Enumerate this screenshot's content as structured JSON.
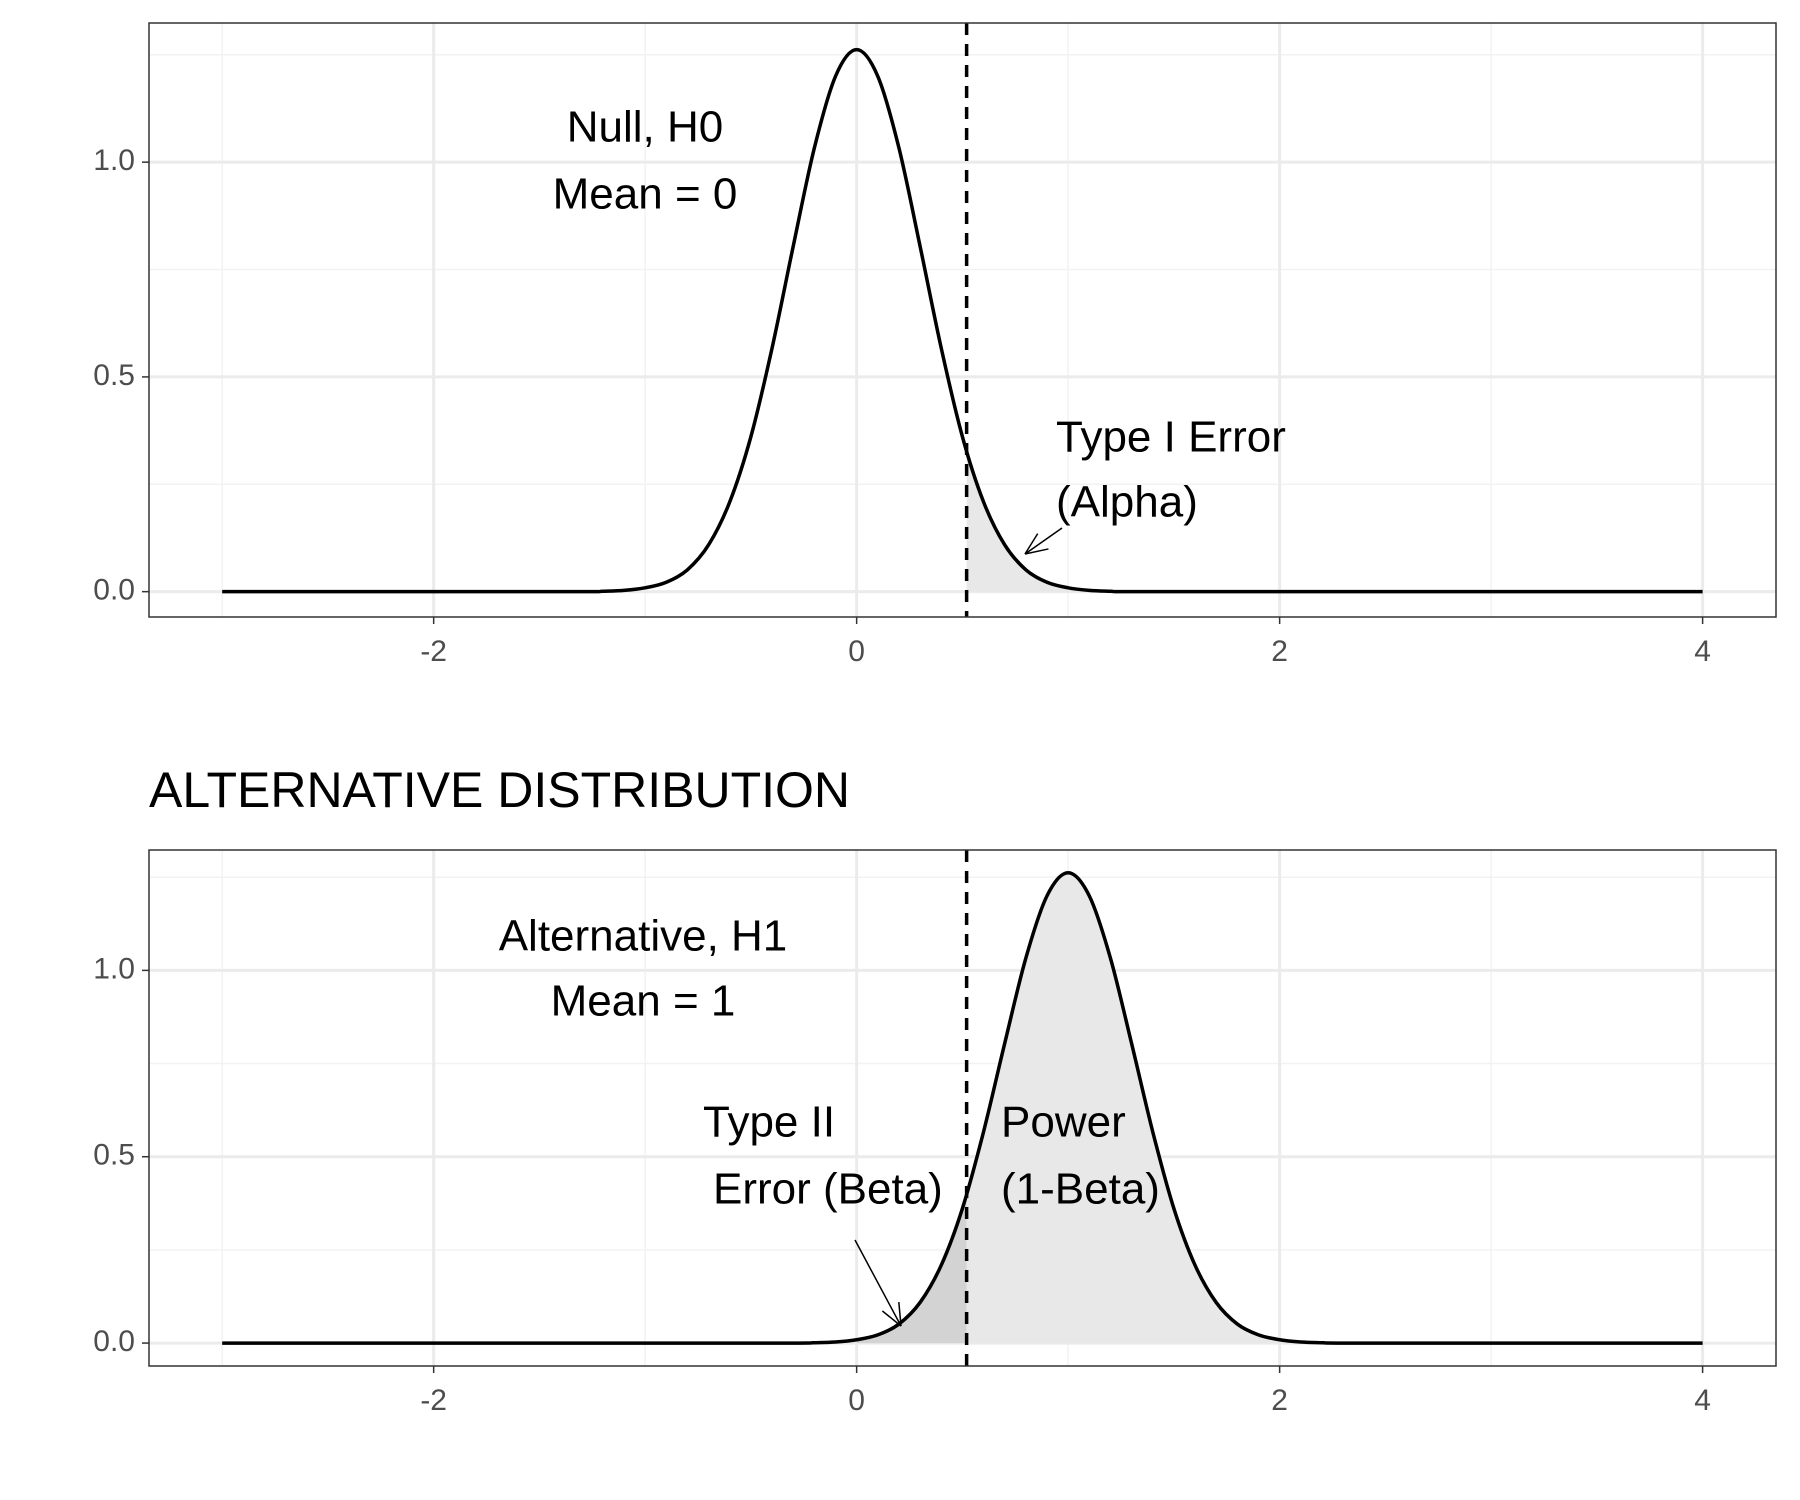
{
  "chart_data": [
    {
      "type": "line",
      "x": [
        -3,
        -2,
        -1.3,
        -1.2,
        -1.1,
        -1.0,
        -0.9,
        -0.8,
        -0.7,
        -0.6,
        -0.5,
        -0.4,
        -0.3,
        -0.2,
        -0.1,
        0,
        0.1,
        0.2,
        0.3,
        0.4,
        0.5,
        0.6,
        0.7,
        0.8,
        0.9,
        1.0,
        1.1,
        1.2,
        1.3,
        2,
        3,
        4
      ],
      "series": [
        {
          "color": "#000000",
          "values": [
            0,
            0,
            0,
            0.001,
            0.003,
            0.009,
            0.022,
            0.051,
            0.109,
            0.209,
            0.361,
            0.567,
            0.804,
            1.033,
            1.2,
            1.262,
            1.2,
            1.033,
            0.804,
            0.567,
            0.361,
            0.209,
            0.109,
            0.051,
            0.022,
            0.009,
            0.003,
            0.001,
            0,
            0,
            0,
            0
          ]
        }
      ],
      "shading": [
        {
          "from": 0.52,
          "to": 4,
          "color": "#e8e8e8"
        }
      ],
      "vline": 0.52,
      "annotations": [
        "Null, H0",
        "Mean = 0",
        "Type I Error",
        "(Alpha)"
      ],
      "xlim": [
        -3.346,
        4.347
      ],
      "ylim": [
        -0.059,
        1.324
      ],
      "xticks": [
        -2,
        0,
        2,
        4
      ],
      "yticks": [
        {
          "value": 0,
          "label": "0.0"
        },
        {
          "value": 0.5,
          "label": "0.5"
        },
        {
          "value": 1,
          "label": "1.0"
        }
      ],
      "xticks_minor": [
        -3,
        -1,
        1,
        3
      ],
      "yticks_minor": [
        0.25,
        0.75,
        1.25
      ],
      "grid": true
    },
    {
      "type": "line",
      "title": "ALTERNATIVE DISTRIBUTION",
      "x": [
        -3,
        -2,
        -1,
        -0.3,
        -0.2,
        -0.1,
        0,
        0.1,
        0.2,
        0.3,
        0.4,
        0.5,
        0.6,
        0.7,
        0.8,
        0.9,
        1.0,
        1.1,
        1.2,
        1.3,
        1.4,
        1.5,
        1.6,
        1.7,
        1.8,
        1.9,
        2.0,
        2.1,
        2.2,
        2.3,
        3,
        4
      ],
      "series": [
        {
          "color": "#000000",
          "values": [
            0,
            0,
            0,
            0,
            0.001,
            0.003,
            0.009,
            0.022,
            0.051,
            0.109,
            0.209,
            0.361,
            0.567,
            0.804,
            1.033,
            1.2,
            1.262,
            1.2,
            1.033,
            0.804,
            0.567,
            0.361,
            0.209,
            0.109,
            0.051,
            0.022,
            0.009,
            0.003,
            0.001,
            0,
            0,
            0
          ]
        }
      ],
      "shading": [
        {
          "from": 0,
          "to": 0.52,
          "color": "#d3d3d3"
        },
        {
          "from": 0.52,
          "to": 4,
          "color": "#e8e8e8"
        }
      ],
      "vline": 0.52,
      "annotations": [
        "Alternative, H1",
        "Mean = 1",
        "Type II",
        "Error (Beta)",
        "Power",
        "(1-Beta)"
      ],
      "xlim": [
        -3.346,
        4.347
      ],
      "ylim": [
        -0.0615,
        1.323
      ],
      "xticks": [
        -2,
        0,
        2,
        4
      ],
      "yticks": [
        {
          "value": 0,
          "label": "0.0"
        },
        {
          "value": 0.5,
          "label": "0.5"
        },
        {
          "value": 1,
          "label": "1.0"
        }
      ],
      "xticks_minor": [
        -3,
        -1,
        1,
        3
      ],
      "yticks_minor": [
        0.25,
        0.75,
        1.25
      ],
      "grid": true
    }
  ]
}
